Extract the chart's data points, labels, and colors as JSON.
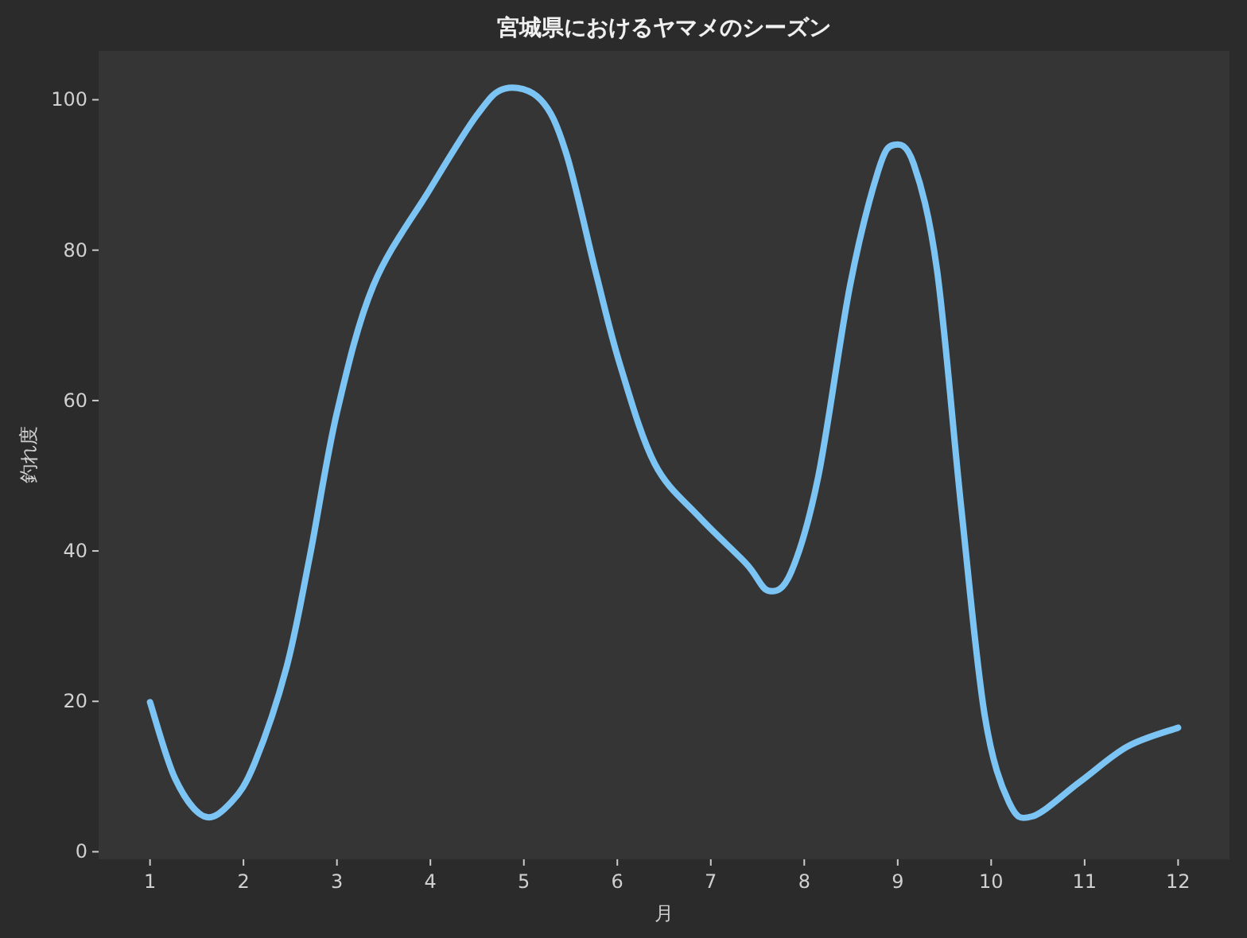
{
  "chart_data": {
    "type": "line",
    "title": "宮城県におけるヤマメのシーズン",
    "xlabel": "月",
    "ylabel": "釣れ度",
    "series": [
      {
        "color": "#7cc4f4",
        "x": [
          1,
          1.27,
          1.58,
          1.87,
          2.12,
          2.46,
          2.71,
          3.0,
          3.39,
          3.99,
          4.5,
          4.8,
          5.18,
          5.45,
          5.77,
          6.03,
          6.4,
          6.87,
          7.38,
          7.62,
          7.86,
          8.15,
          8.49,
          8.79,
          8.96,
          9.17,
          9.42,
          9.68,
          9.93,
          10.19,
          10.44,
          10.95,
          11.46,
          12
        ],
        "values": [
          19.9,
          9.7,
          4.7,
          6.6,
          11.8,
          24.5,
          39.3,
          58.4,
          75.3,
          88,
          98,
          101.5,
          100,
          93,
          77,
          64.7,
          51.6,
          44.6,
          38.3,
          34.7,
          37.2,
          49.9,
          75.3,
          90.5,
          94,
          91.5,
          77.4,
          45.7,
          18.2,
          6.6,
          4.7,
          9.3,
          14,
          16.5
        ]
      }
    ],
    "xlim": [
      0.45,
      12.55
    ],
    "ylim": [
      -1,
      106.5
    ],
    "xticks": [
      1,
      2,
      3,
      4,
      5,
      6,
      7,
      8,
      9,
      10,
      11,
      12
    ],
    "yticks": [
      0,
      20,
      40,
      60,
      80,
      100
    ],
    "grid": false
  }
}
